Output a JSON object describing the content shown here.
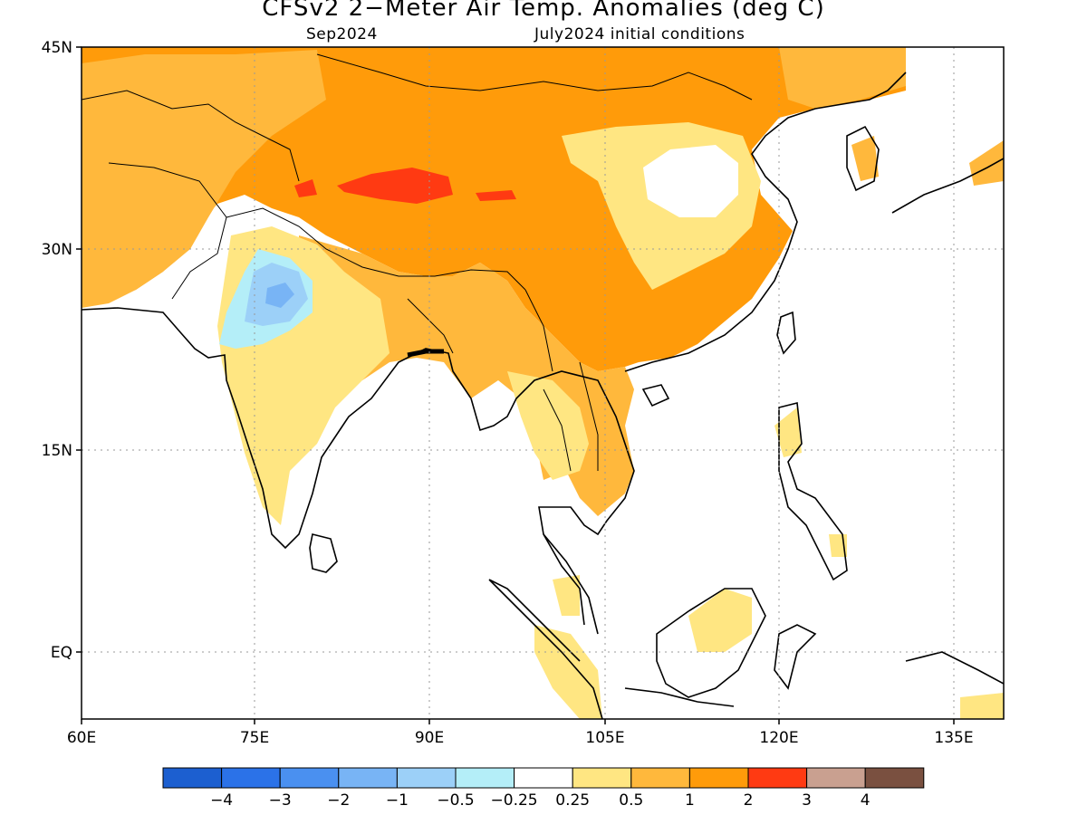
{
  "title": "CFSv2 2−Meter Air Temp. Anomalies (deg C)",
  "subtitle_left": "Sep2024",
  "subtitle_right": "July2024 initial conditions",
  "lat_labels": [
    "45N",
    "30N",
    "15N",
    "EQ"
  ],
  "lon_labels": [
    "60E",
    "75E",
    "90E",
    "105E",
    "120E",
    "135E"
  ],
  "colorbar": {
    "colors": [
      "#1c5fd0",
      "#2b72e8",
      "#4a90f0",
      "#78b4f5",
      "#9cd0f8",
      "#b4eef8",
      "#ffffff",
      "#ffe682",
      "#ffb83c",
      "#ff9b0a",
      "#ff3a12",
      "#c9a090",
      "#7a5040"
    ],
    "labels": [
      "−4",
      "−3",
      "−2",
      "−1",
      "−0.5",
      "−0.25",
      "0.25",
      "0.5",
      "1",
      "2",
      "3",
      "4"
    ]
  },
  "legend_colors": {
    "land_neutral": "#ffffff",
    "weak_warm": "#ffe682",
    "warm": "#ffb83c",
    "warmer": "#ff9b0a",
    "hot": "#ff3a12",
    "weak_cold": "#b4eef8",
    "cold": "#78b4f5",
    "colder": "#4a90f0"
  }
}
